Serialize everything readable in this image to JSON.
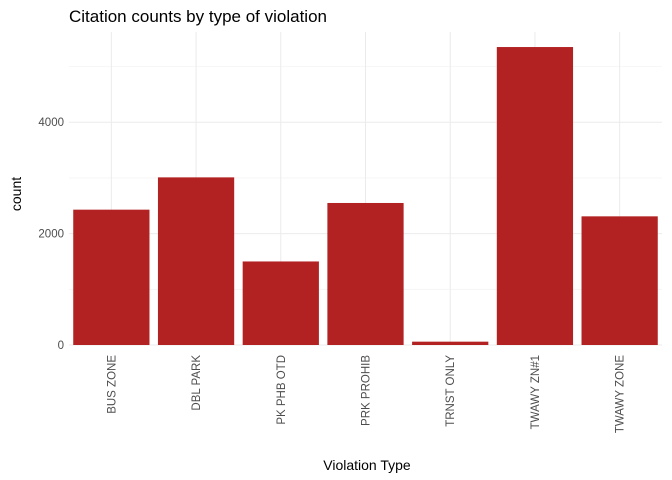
{
  "chart_data": {
    "type": "bar",
    "title": "Citation counts by type of violation",
    "xlabel": "Violation Type",
    "ylabel": "count",
    "categories": [
      "BUS ZONE",
      "DBL PARK",
      "PK PHB OTD",
      "PRK PROHIB",
      "TRNST ONLY",
      "TWAWY ZN#1",
      "TWAWY ZONE"
    ],
    "values": [
      2430,
      3010,
      1500,
      2550,
      60,
      5350,
      2310
    ],
    "yticks": [
      0,
      2000,
      4000
    ],
    "ylim": [
      0,
      5620
    ],
    "bar_color": "#b22222",
    "grid": true,
    "legend": "none"
  }
}
